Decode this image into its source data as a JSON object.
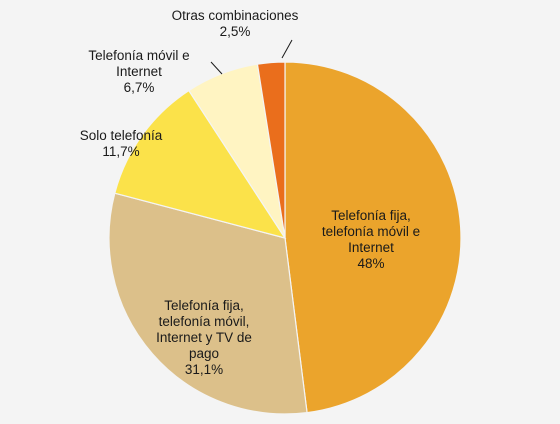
{
  "chart_data": {
    "type": "pie",
    "slices": [
      {
        "label_lines": [
          "Telefonía fija,",
          "telefonía móvil e",
          "Internet"
        ],
        "value_label": "48%",
        "value": 48.0,
        "color": "#eba42c"
      },
      {
        "label_lines": [
          "Telefonía fija,",
          "telefonía móvil,",
          "Internet y TV de",
          "pago"
        ],
        "value_label": "31,1%",
        "value": 31.1,
        "color": "#dcc08a"
      },
      {
        "label_lines": [
          "Solo telefonía"
        ],
        "value_label": "11,7%",
        "value": 11.7,
        "color": "#fbe24a"
      },
      {
        "label_lines": [
          "Telefonía móvil e",
          "Internet"
        ],
        "value_label": "6,7%",
        "value": 6.7,
        "color": "#fff4c2"
      },
      {
        "label_lines": [
          "Otras combinaciones"
        ],
        "value_label": "2,5%",
        "value": 2.5,
        "color": "#ea6e1c"
      }
    ]
  }
}
